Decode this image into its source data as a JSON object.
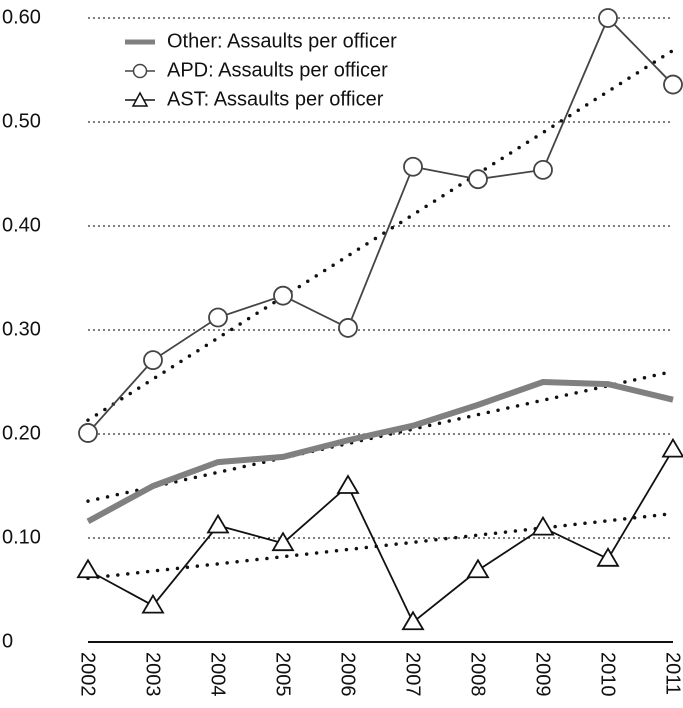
{
  "chart_data": {
    "type": "line",
    "categories": [
      "2002",
      "2003",
      "2004",
      "2005",
      "2006",
      "2007",
      "2008",
      "2009",
      "2010",
      "2011"
    ],
    "series": [
      {
        "name": "Other: Assaults per officer",
        "color": "#808080",
        "marker": "none",
        "values": [
          0.116,
          0.15,
          0.173,
          0.178,
          0.194,
          0.208,
          0.228,
          0.25,
          0.248,
          0.233
        ]
      },
      {
        "name": "APD: Assaults per officer",
        "color": "#444444",
        "marker": "circle",
        "values": [
          0.201,
          0.271,
          0.312,
          0.333,
          0.302,
          0.457,
          0.445,
          0.454,
          0.6,
          0.536
        ]
      },
      {
        "name": "AST: Assaults per officer",
        "color": "#111111",
        "marker": "triangle",
        "values": [
          0.069,
          0.035,
          0.112,
          0.095,
          0.15,
          0.019,
          0.069,
          0.11,
          0.08,
          0.185
        ]
      }
    ],
    "ylim": [
      0,
      0.6
    ],
    "yticks": [
      0,
      {
        "value": 0.1,
        "label": "0.10"
      },
      {
        "value": 0.2,
        "label": "0.20"
      },
      {
        "value": 0.3,
        "label": "0.30"
      },
      {
        "value": 0.4,
        "label": "0.40"
      },
      {
        "value": 0.5,
        "label": "0.50"
      },
      {
        "value": 0.6,
        "label": "0.60"
      }
    ],
    "grid": true,
    "trendline": true,
    "legend": "top-left"
  }
}
